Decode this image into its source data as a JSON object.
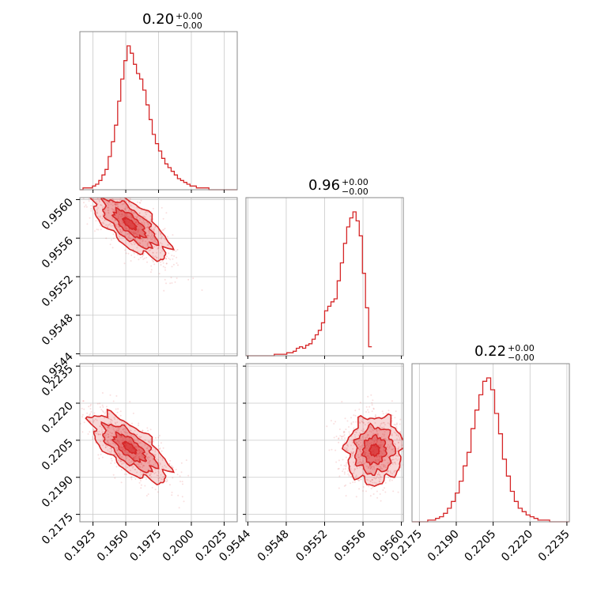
{
  "chart_data": {
    "type": "corner",
    "color": "#d62728",
    "titles": [
      {
        "value": "0.20",
        "plus": "+0.00",
        "minus": "−0.00"
      },
      {
        "value": "0.96",
        "plus": "+0.00",
        "minus": "−0.00"
      },
      {
        "value": "0.22",
        "plus": "+0.00",
        "minus": "−0.00"
      }
    ],
    "params": [
      {
        "range": [
          0.1915,
          0.2035
        ],
        "ticks": [
          0.1925,
          0.195,
          0.1975,
          0.2,
          0.2025
        ],
        "tick_labels": [
          "0.1925",
          "0.1950",
          "0.1975",
          "0.2000",
          "0.2025"
        ]
      },
      {
        "range": [
          0.95438,
          0.95602
        ],
        "ticks": [
          0.9544,
          0.9548,
          0.9552,
          0.9556,
          0.956
        ],
        "tick_labels": [
          "0.9544",
          "0.9548",
          "0.9552",
          "0.9556",
          "0.9560"
        ]
      },
      {
        "range": [
          0.2172,
          0.2236
        ],
        "ticks": [
          0.2175,
          0.219,
          0.2205,
          0.222,
          0.2235
        ],
        "tick_labels": [
          "0.2175",
          "0.2190",
          "0.2205",
          "0.2220",
          "0.2235"
        ]
      }
    ],
    "histograms": [
      {
        "start": 0.1915,
        "step": 0.00024,
        "counts": [
          0,
          1,
          1,
          1,
          2,
          3,
          5,
          8,
          11,
          18,
          26,
          35,
          48,
          60,
          70,
          78,
          74,
          68,
          63,
          60,
          54,
          46,
          38,
          30,
          25,
          21,
          17,
          14,
          12,
          10,
          8,
          6,
          5,
          4,
          3,
          2,
          2,
          1,
          1,
          1,
          1,
          0,
          0,
          0,
          0,
          0,
          0,
          0,
          0,
          0
        ]
      },
      {
        "start": 0.95438,
        "step": 3.28e-05,
        "counts": [
          0,
          0,
          0,
          0,
          0,
          0,
          0,
          0,
          0,
          1,
          1,
          1,
          1,
          2,
          2,
          3,
          5,
          6,
          5,
          7,
          8,
          11,
          14,
          17,
          22,
          30,
          33,
          36,
          38,
          50,
          62,
          75,
          86,
          92,
          96,
          90,
          80,
          55,
          32,
          6
        ]
      },
      {
        "start": 0.2172,
        "step": 0.00016,
        "counts": [
          0,
          0,
          0,
          0,
          1,
          1,
          2,
          3,
          5,
          8,
          12,
          17,
          24,
          33,
          41,
          55,
          66,
          75,
          83,
          85,
          78,
          64,
          52,
          37,
          27,
          18,
          12,
          8,
          6,
          4,
          3,
          2,
          1,
          1,
          1,
          0,
          0,
          0,
          0,
          0
        ]
      }
    ],
    "pairs": [
      {
        "x": 0,
        "y": 1,
        "center": [
          0.1953,
          0.95575
        ],
        "sigma": [
          0.0014,
          0.00017
        ],
        "rho": -0.72
      },
      {
        "x": 0,
        "y": 2,
        "center": [
          0.1953,
          0.2202
        ],
        "sigma": [
          0.0014,
          0.00065
        ],
        "rho": -0.7
      },
      {
        "x": 1,
        "y": 2,
        "center": [
          0.95572,
          0.2201
        ],
        "sigma": [
          0.00014,
          0.00065
        ],
        "rho": 0.05
      }
    ],
    "grid": true
  }
}
